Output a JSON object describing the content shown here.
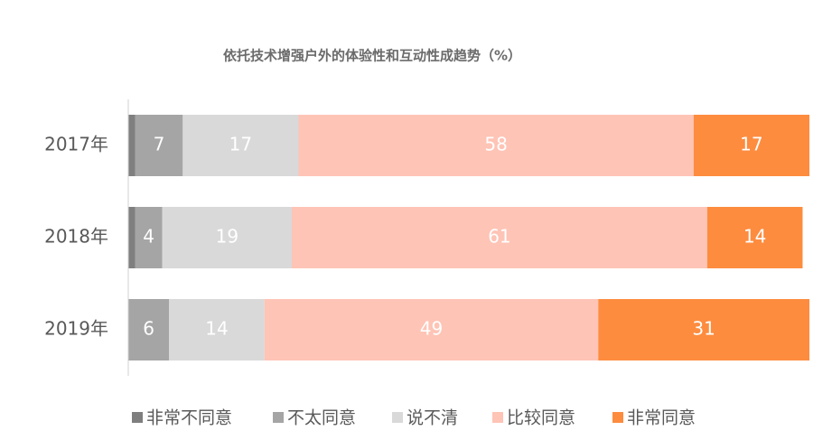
{
  "chart_data": {
    "type": "stacked-barh",
    "title": "依托技术增强户外的体验性和互动性成趋势（%）",
    "categories": [
      "2017年",
      "2018年",
      "2019年"
    ],
    "series": [
      {
        "name": "非常不同意",
        "color": "#7f7f7f",
        "values": [
          1,
          1,
          0
        ],
        "show_labels": false
      },
      {
        "name": "不太同意",
        "color": "#a5a5a5",
        "values": [
          7,
          4,
          6
        ],
        "show_labels": true
      },
      {
        "name": "说不清",
        "color": "#d9d9d9",
        "values": [
          17,
          19,
          14
        ],
        "show_labels": true
      },
      {
        "name": "比较同意",
        "color": "#fec4b6",
        "values": [
          58,
          61,
          49
        ],
        "show_labels": true
      },
      {
        "name": "非常同意",
        "color": "#fd8c3f",
        "values": [
          17,
          14,
          31
        ],
        "show_labels": true
      }
    ],
    "xlim": [
      0,
      100
    ]
  }
}
